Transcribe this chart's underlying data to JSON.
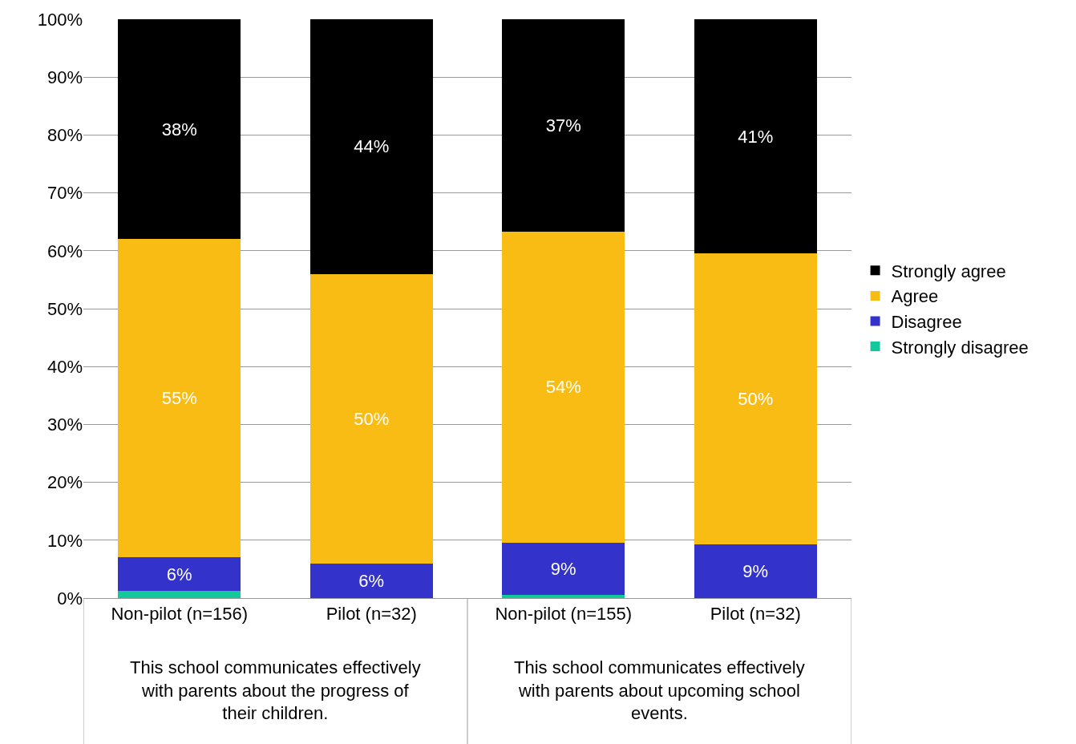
{
  "chart_data": {
    "type": "bar",
    "stacked": true,
    "categories": [
      "Non-pilot (n=156)",
      "Pilot (n=32)",
      "Non-pilot (n=155)",
      "Pilot (n=32)"
    ],
    "series": [
      {
        "name": "Strongly disagree",
        "color": "#13c89a",
        "values": [
          1.2,
          0,
          0.6,
          0
        ],
        "value_labels": [
          null,
          null,
          null,
          null
        ]
      },
      {
        "name": "Disagree",
        "color": "#3333cc",
        "values": [
          5.8,
          6,
          9.0,
          9.3
        ],
        "value_labels": [
          "6%",
          "6%",
          "9%",
          "9%"
        ]
      },
      {
        "name": "Agree",
        "color": "#f8bc15",
        "values": [
          55,
          50,
          53.7,
          50.2
        ],
        "value_labels": [
          "55%",
          "50%",
          "54%",
          "50%"
        ]
      },
      {
        "name": "Strongly agree",
        "color": "#000000",
        "values": [
          38,
          44,
          36.7,
          40.5
        ],
        "value_labels": [
          "38%",
          "44%",
          "37%",
          "41%"
        ]
      }
    ],
    "ylim": [
      0,
      100
    ],
    "yticks": [
      {
        "value": 0,
        "label": "0%"
      },
      {
        "value": 10,
        "label": "10%"
      },
      {
        "value": 20,
        "label": "20%"
      },
      {
        "value": 30,
        "label": "30%"
      },
      {
        "value": 40,
        "label": "40%"
      },
      {
        "value": 50,
        "label": "50%"
      },
      {
        "value": 60,
        "label": "60%"
      },
      {
        "value": 70,
        "label": "70%"
      },
      {
        "value": 80,
        "label": "80%"
      },
      {
        "value": 90,
        "label": "90%"
      },
      {
        "value": 100,
        "label": "100%"
      }
    ],
    "grid": "y",
    "legend": "right",
    "annotations": [
      "This school communicates effectively with parents about the progress of their children.",
      "This school communicates effectively with parents about upcoming school events."
    ]
  }
}
